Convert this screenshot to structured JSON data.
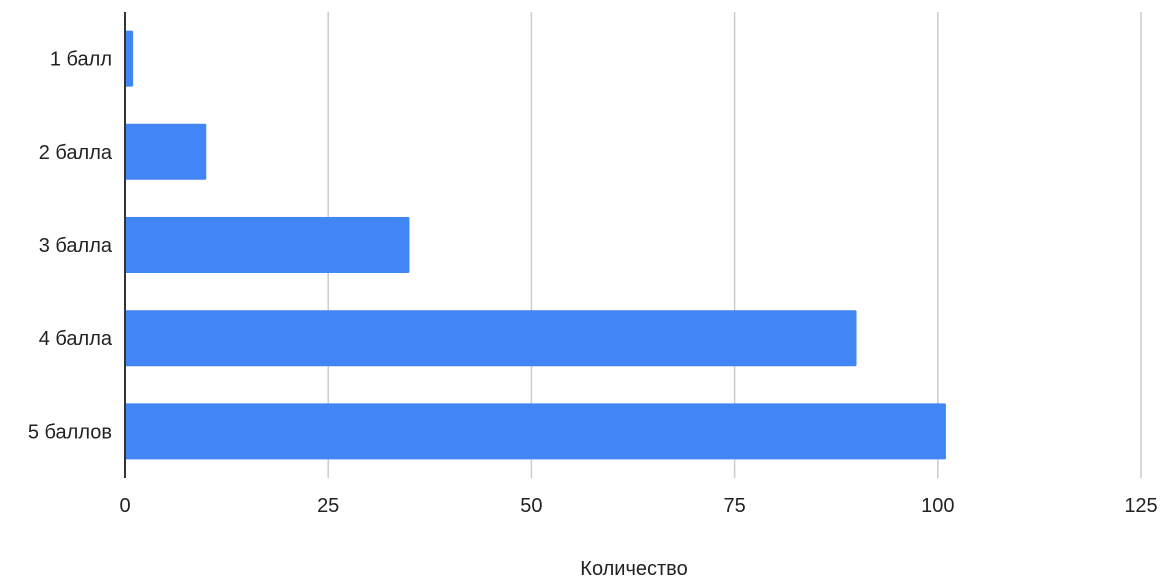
{
  "chart_data": {
    "type": "bar",
    "orientation": "horizontal",
    "title": "",
    "xlabel": "Количество",
    "ylabel": "",
    "categories": [
      "1 балл",
      "2 балла",
      "3 балла",
      "4 балла",
      "5 баллов"
    ],
    "series": [
      {
        "values": [
          1,
          10,
          35,
          90,
          101
        ]
      }
    ],
    "xlim": [
      0,
      125
    ],
    "xticks": [
      0,
      25,
      50,
      75,
      100,
      125
    ],
    "grid": true,
    "legend": "none",
    "colors": {
      "bar": "#4285f4",
      "grid": "#cccccc",
      "axis": "#333333",
      "text": "#222222"
    }
  }
}
